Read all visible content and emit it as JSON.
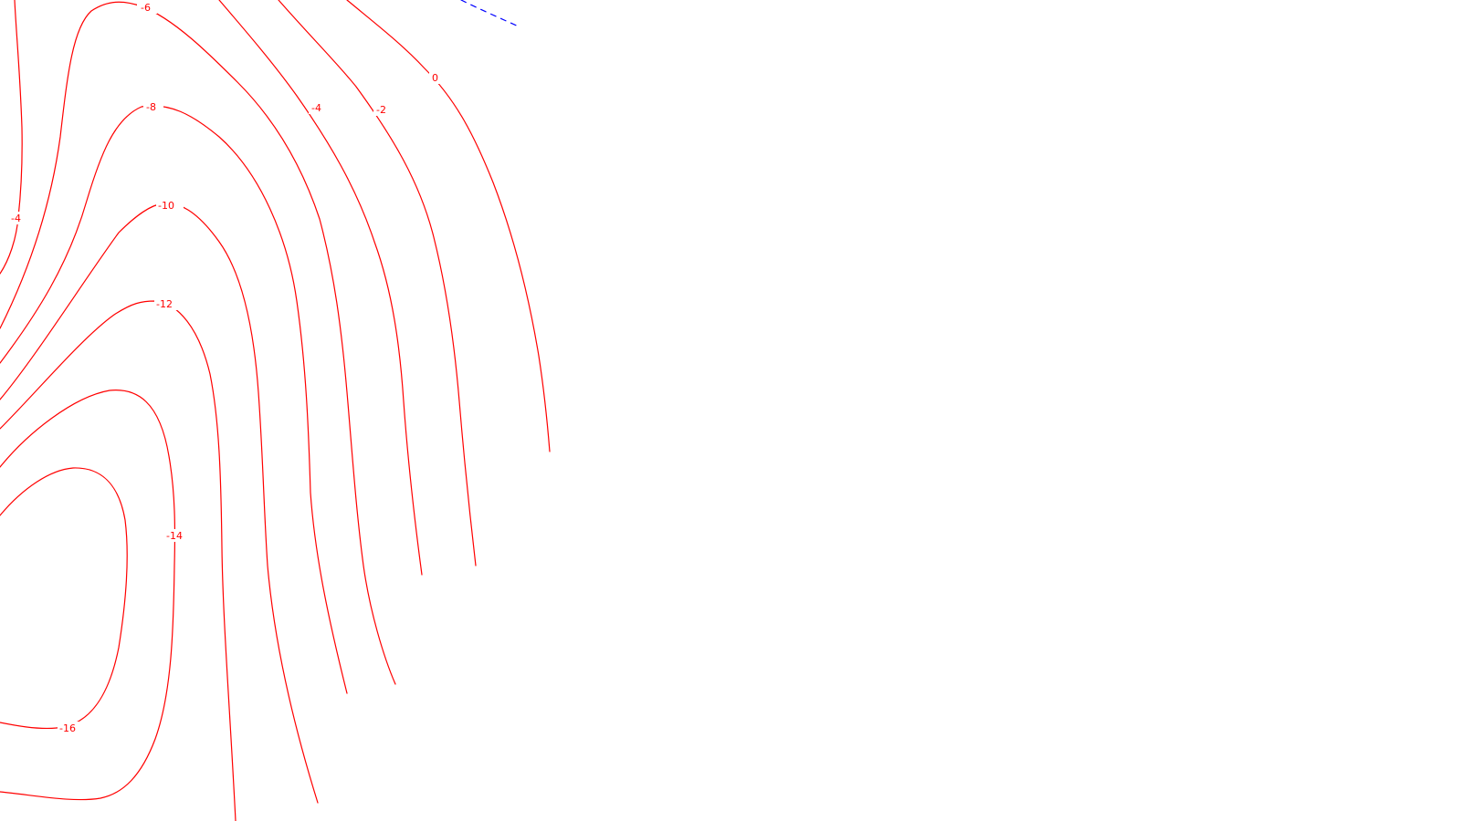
{
  "map": {
    "line_color_negative": "#ff0000",
    "line_color_zero_dashed": "#0000ff",
    "background": "#ffffff",
    "contours": [
      {
        "id": "c-4-left",
        "level": "-4",
        "style": "solid",
        "label": "-4"
      },
      {
        "id": "c-6",
        "level": "-6",
        "style": "solid",
        "label": "-6"
      },
      {
        "id": "c-8",
        "level": "-8",
        "style": "solid",
        "label": "-8"
      },
      {
        "id": "c-10",
        "level": "-10",
        "style": "solid",
        "label": "-10"
      },
      {
        "id": "c-12",
        "level": "-12",
        "style": "solid",
        "label": "-12"
      },
      {
        "id": "c-14",
        "level": "-14",
        "style": "solid",
        "label": "-14"
      },
      {
        "id": "c-16",
        "level": "-16",
        "style": "solid",
        "label": "-16"
      },
      {
        "id": "c-4-right",
        "level": "-4",
        "style": "solid",
        "label": "-4"
      },
      {
        "id": "c-2",
        "level": "-2",
        "style": "solid",
        "label": "-2"
      },
      {
        "id": "c0",
        "level": "0",
        "style": "solid",
        "label": "0"
      },
      {
        "id": "c-pos",
        "level": "",
        "style": "dashed",
        "label": ""
      }
    ]
  }
}
